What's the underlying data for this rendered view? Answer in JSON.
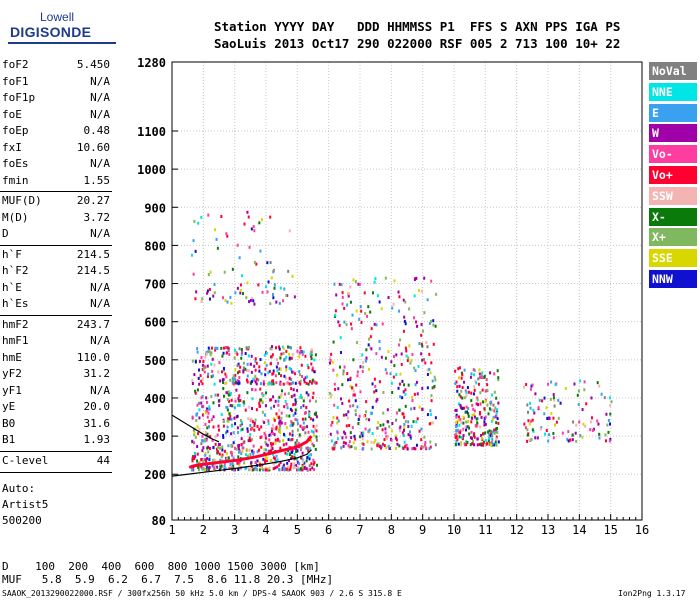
{
  "logo": {
    "top": "Lowell",
    "main": "DIGISONDE"
  },
  "header": {
    "labels": "Station YYYY DAY   DDD HHMMSS P1  FFS S AXN PPS IGA PS",
    "values": "SaoLuis 2013 Oct17 290 022000 RSF 005 2 713 100 10+ 22"
  },
  "params": [
    {
      "group": 1,
      "name": "foF2",
      "value": "5.450"
    },
    {
      "group": 1,
      "name": "foF1",
      "value": "N/A"
    },
    {
      "group": 1,
      "name": "foF1p",
      "value": "N/A"
    },
    {
      "group": 1,
      "name": "foE",
      "value": "N/A"
    },
    {
      "group": 1,
      "name": "foEp",
      "value": "0.48"
    },
    {
      "group": 1,
      "name": "fxI",
      "value": "10.60"
    },
    {
      "group": 1,
      "name": "foEs",
      "value": "N/A"
    },
    {
      "group": 1,
      "name": "fmin",
      "value": "1.55"
    },
    {
      "group": 2,
      "name": "MUF(D)",
      "value": "20.27"
    },
    {
      "group": 2,
      "name": "M(D)",
      "value": "3.72"
    },
    {
      "group": 2,
      "name": "D",
      "value": "N/A"
    },
    {
      "group": 3,
      "name": "h`F",
      "value": "214.5"
    },
    {
      "group": 3,
      "name": "h`F2",
      "value": "214.5"
    },
    {
      "group": 3,
      "name": "h`E",
      "value": "N/A"
    },
    {
      "group": 3,
      "name": "h`Es",
      "value": "N/A"
    },
    {
      "group": 4,
      "name": "hmF2",
      "value": "243.7"
    },
    {
      "group": 4,
      "name": "hmF1",
      "value": "N/A"
    },
    {
      "group": 4,
      "name": "hmE",
      "value": "110.0"
    },
    {
      "group": 4,
      "name": "yF2",
      "value": "31.2"
    },
    {
      "group": 4,
      "name": "yF1",
      "value": "N/A"
    },
    {
      "group": 4,
      "name": "yE",
      "value": "20.0"
    },
    {
      "group": 4,
      "name": "B0",
      "value": "31.6"
    },
    {
      "group": 4,
      "name": "B1",
      "value": "1.93"
    },
    {
      "group": 5,
      "name": "C-level",
      "value": "44"
    }
  ],
  "autoscaling": [
    "Auto:",
    "Artist5",
    "500200"
  ],
  "legend": [
    {
      "label": "NoVal",
      "color": "#808080"
    },
    {
      "label": "NNE",
      "color": "#00e5e5"
    },
    {
      "label": "E",
      "color": "#3aa0f0"
    },
    {
      "label": "W",
      "color": "#a000a8"
    },
    {
      "label": "Vo-",
      "color": "#ff3ca0"
    },
    {
      "label": "Vo+",
      "color": "#ff0030"
    },
    {
      "label": "SSW",
      "color": "#f5b4b4"
    },
    {
      "label": "X-",
      "color": "#0a7a0a"
    },
    {
      "label": "X+",
      "color": "#80b860"
    },
    {
      "label": "SSE",
      "color": "#d8d800"
    },
    {
      "label": "NNW",
      "color": "#1010d0"
    }
  ],
  "bottom": {
    "d_line": "D    100  200  400  600  800 1000 1500 3000 [km]",
    "muf_line": "MUF   5.8  5.9  6.2  6.7  7.5  8.6 11.8 20.3 [MHz]",
    "footer_left": "SAAOK_2013290022000.RSF / 300fx256h 50 kHz 5.0 km / DPS-4 SAAOK 903 / 2.6 S 315.8 E",
    "footer_right": "Ion2Png 1.3.17"
  },
  "chart_data": {
    "type": "scatter",
    "title": "",
    "xlabel": "",
    "ylabel": "",
    "xlim": [
      1,
      16
    ],
    "ylim": [
      80,
      1280
    ],
    "x_ticks": [
      1,
      2,
      3,
      4,
      5,
      6,
      7,
      8,
      9,
      10,
      11,
      12,
      13,
      14,
      15,
      16
    ],
    "y_ticks": [
      80,
      200,
      300,
      400,
      500,
      600,
      700,
      800,
      900,
      1000,
      1100,
      1280
    ],
    "grid": true,
    "legend_position": "right",
    "series": [
      {
        "name": "O-trace F2",
        "color": "#ff0030",
        "x": [
          1.55,
          1.7,
          1.9,
          2.1,
          2.3,
          2.5,
          2.7,
          2.9,
          3.1,
          3.3,
          3.5,
          3.7,
          3.9,
          4.1,
          4.3,
          4.5,
          4.7,
          4.9,
          5.1,
          5.3,
          5.45
        ],
        "y": [
          218,
          222,
          225,
          227,
          229,
          231,
          233,
          235,
          237,
          240,
          243,
          246,
          250,
          254,
          258,
          262,
          266,
          270,
          276,
          285,
          300
        ]
      },
      {
        "name": "Model profile",
        "color": "#000000",
        "x": [
          1.0,
          1.5,
          2.0,
          2.5,
          3.0,
          3.5,
          4.0,
          4.5,
          5.0,
          5.3,
          5.45
        ],
        "y": [
          195,
          200,
          205,
          210,
          215,
          221,
          227,
          234,
          243,
          252,
          264
        ]
      },
      {
        "name": "Upper model profile",
        "color": "#000000",
        "x": [
          1.0,
          1.3,
          1.7,
          2.0,
          2.3,
          2.5
        ],
        "y": [
          355,
          340,
          320,
          305,
          292,
          285
        ]
      }
    ],
    "echo_regions": [
      {
        "layer": "first-hop",
        "x": [
          1.6,
          5.6
        ],
        "y": [
          215,
          430
        ]
      },
      {
        "layer": "second-hop",
        "x": [
          1.6,
          5.6
        ],
        "y": [
          440,
          540
        ]
      },
      {
        "layer": "third-hop",
        "x": [
          1.6,
          4.9
        ],
        "y": [
          650,
          900
        ]
      },
      {
        "layer": "spread-F",
        "x": [
          6.0,
          9.4
        ],
        "y": [
          270,
          720
        ]
      },
      {
        "layer": "spread-F",
        "x": [
          10.0,
          11.4
        ],
        "y": [
          280,
          490
        ]
      },
      {
        "layer": "spread-F",
        "x": [
          12.2,
          15.0
        ],
        "y": [
          290,
          450
        ]
      }
    ]
  }
}
